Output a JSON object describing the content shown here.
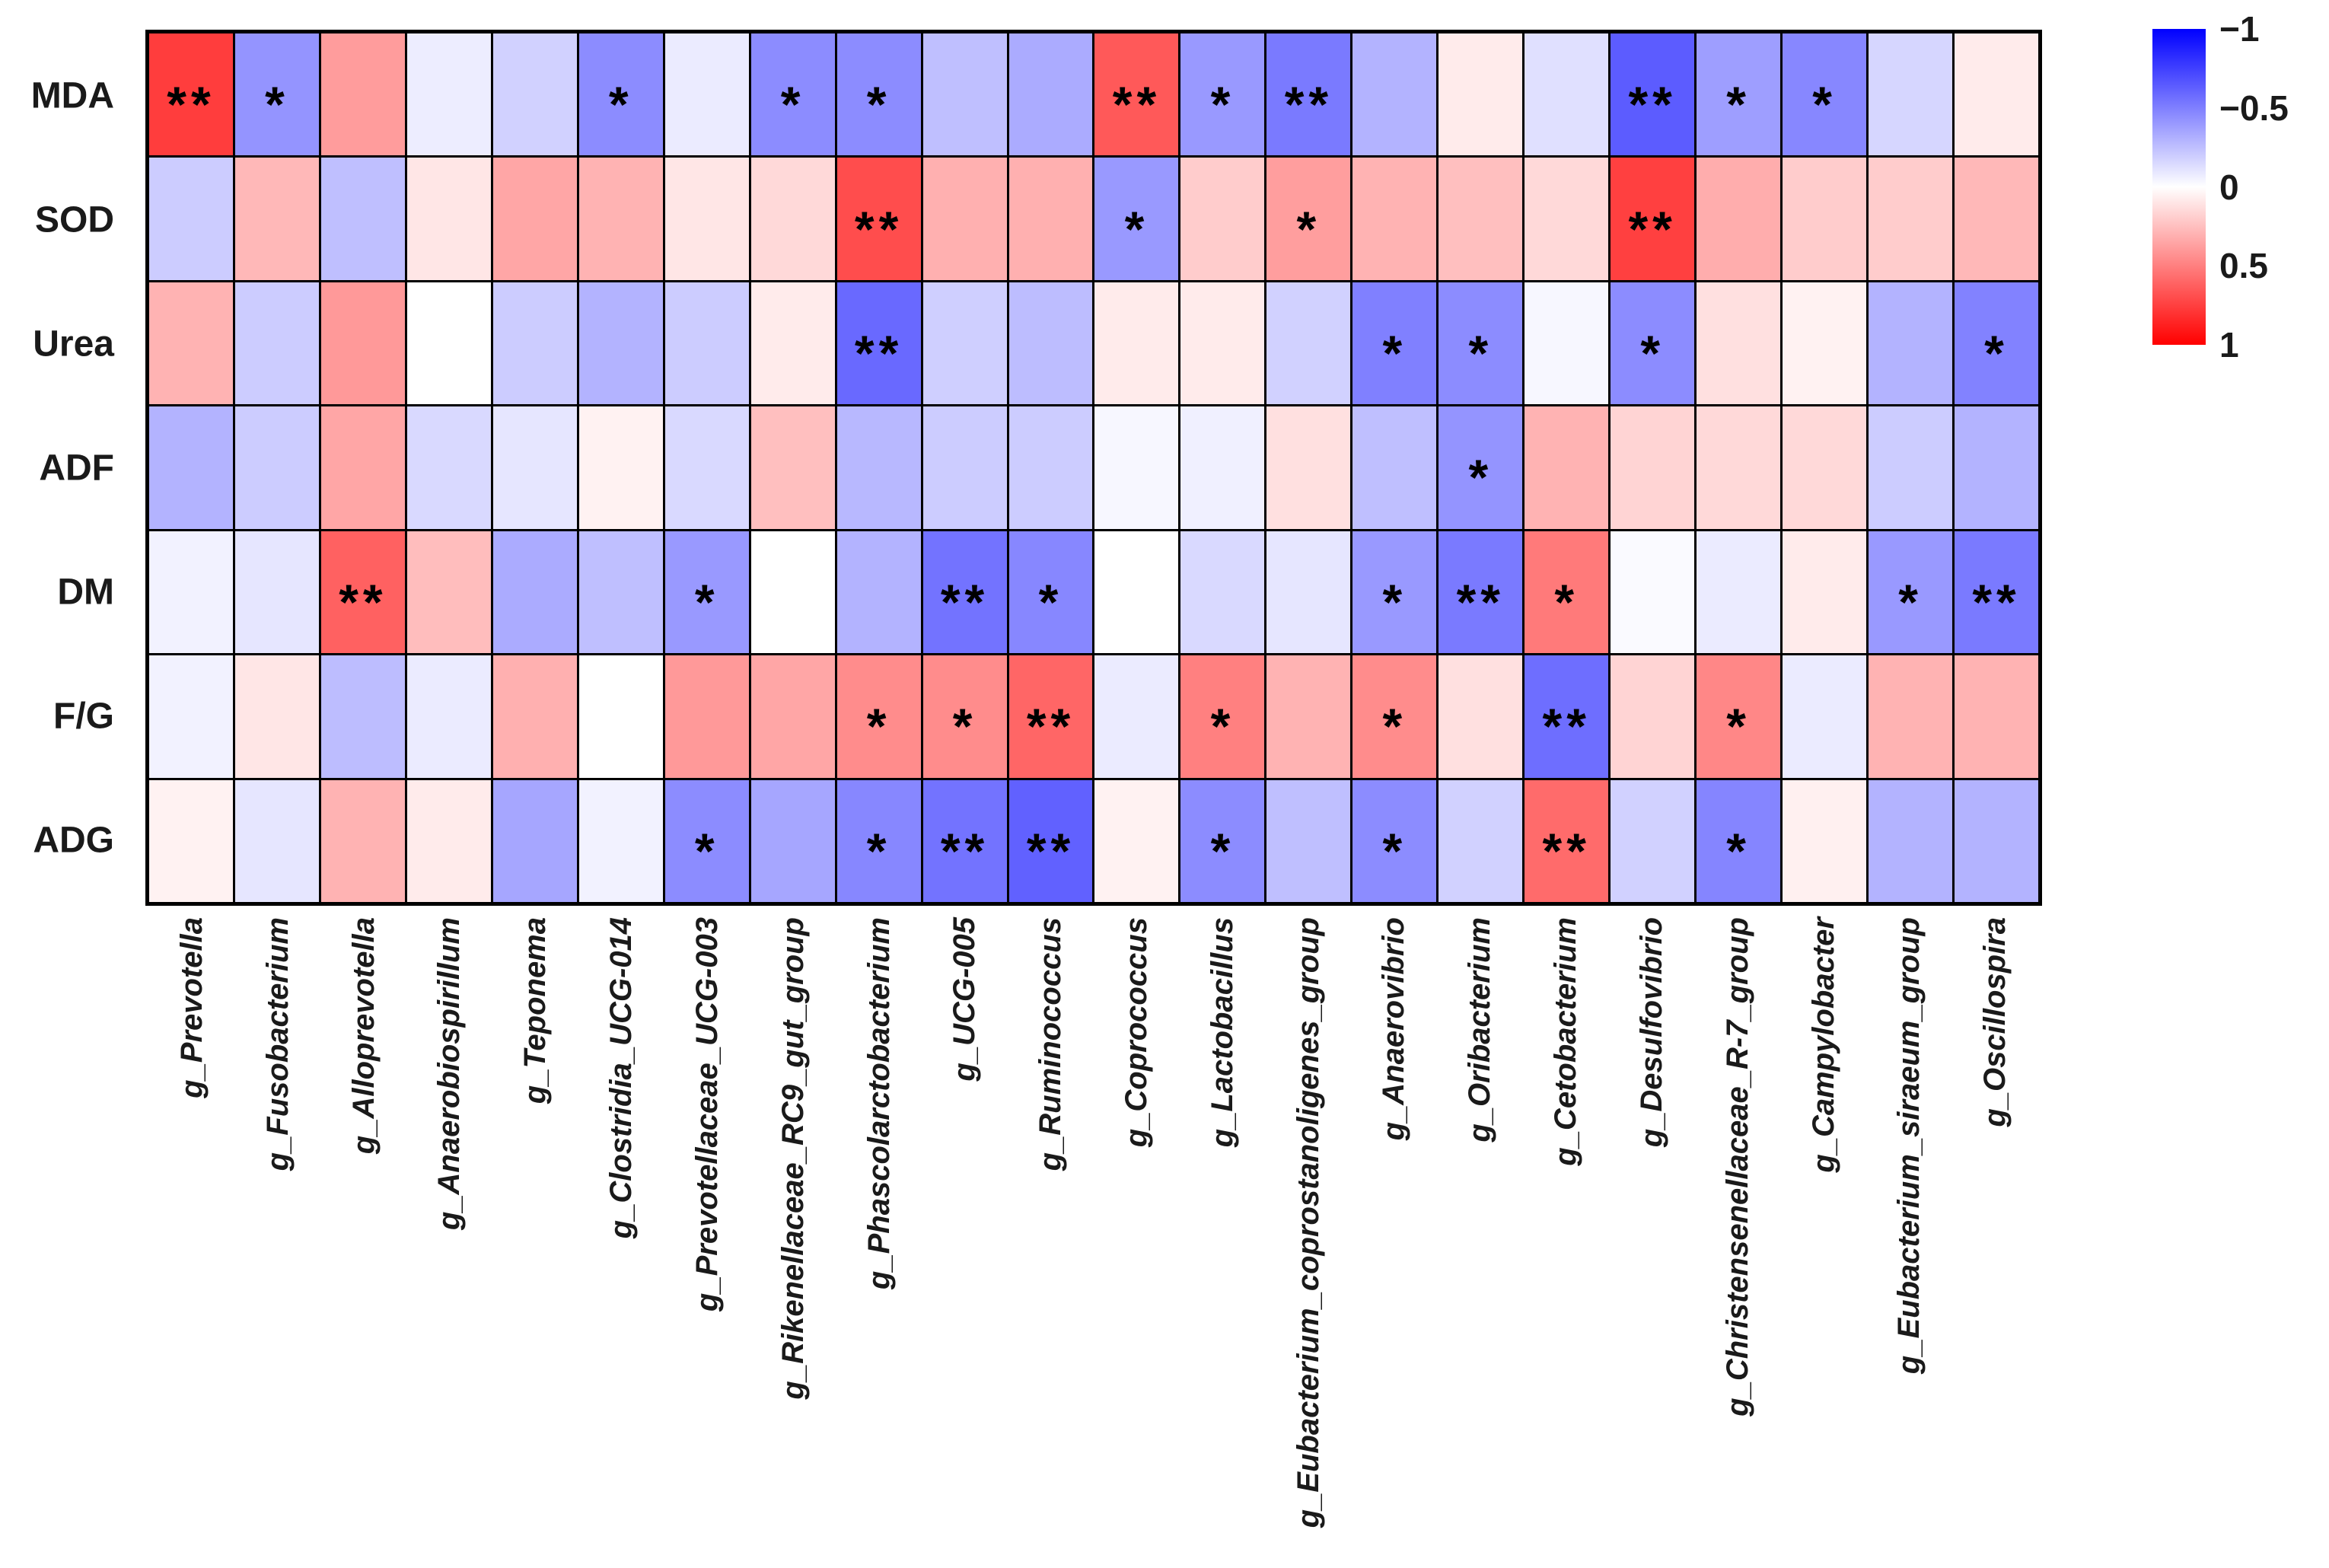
{
  "chart_data": {
    "type": "heatmap",
    "title": "",
    "rows": [
      "MDA",
      "SOD",
      "Urea",
      "ADF",
      "DM",
      "F/G",
      "ADG"
    ],
    "columns": [
      "g_Prevotella",
      "g_Fusobacterium",
      "g_Alloprevotella",
      "g_Anaerobiospirillum",
      "g_Teponema",
      "g_Clostridia_UCG-014",
      "g_Prevotellaceae_UCG-003",
      "g_Rikenellaceae_RC9_gut_group",
      "g_Phascolarctobacterium",
      "g_UCG-005",
      "g_Ruminococcus",
      "g_Coprococcus",
      "g_Lactobacillus",
      "g_Eubacterium_coprostanoligenes_group",
      "g_Anaerovibrio",
      "g_Oribacterium",
      "g_Cetobacterium",
      "g_Desulfovibrio",
      "g_Christensenellaceae_R-7_group",
      "g_Campylobacter",
      "g_Eubacterium_siraeum_group",
      "g_Oscillospira"
    ],
    "values": [
      [
        0.76,
        -0.42,
        0.39,
        -0.07,
        -0.18,
        -0.45,
        -0.08,
        -0.45,
        -0.45,
        -0.25,
        -0.33,
        0.65,
        -0.4,
        -0.52,
        -0.3,
        0.08,
        -0.12,
        -0.64,
        -0.38,
        -0.47,
        -0.16,
        0.08
      ],
      [
        -0.2,
        0.28,
        -0.25,
        0.1,
        0.35,
        0.3,
        0.1,
        0.15,
        0.7,
        0.31,
        0.31,
        -0.4,
        0.2,
        0.38,
        0.3,
        0.25,
        0.15,
        0.75,
        0.32,
        0.2,
        0.2,
        0.28
      ],
      [
        0.3,
        -0.2,
        0.4,
        0.0,
        -0.2,
        -0.3,
        -0.2,
        0.08,
        -0.59,
        -0.19,
        -0.26,
        0.08,
        0.08,
        -0.18,
        -0.5,
        -0.45,
        -0.03,
        -0.45,
        0.12,
        0.05,
        -0.3,
        -0.49
      ],
      [
        -0.3,
        -0.2,
        0.35,
        -0.15,
        -0.1,
        0.05,
        -0.15,
        0.25,
        -0.28,
        -0.2,
        -0.2,
        -0.03,
        -0.06,
        0.12,
        -0.25,
        -0.42,
        0.3,
        0.17,
        0.15,
        0.15,
        -0.2,
        -0.3
      ],
      [
        -0.05,
        -0.1,
        0.62,
        0.26,
        -0.33,
        -0.25,
        -0.4,
        0.0,
        -0.3,
        -0.55,
        -0.47,
        0.0,
        -0.15,
        -0.1,
        -0.4,
        -0.52,
        0.52,
        -0.02,
        -0.08,
        0.08,
        -0.4,
        -0.52
      ],
      [
        -0.05,
        0.1,
        -0.26,
        -0.08,
        0.31,
        0.0,
        0.4,
        0.35,
        0.45,
        0.45,
        0.6,
        -0.08,
        0.5,
        0.3,
        0.45,
        0.12,
        -0.57,
        0.17,
        0.47,
        -0.08,
        0.3,
        0.3
      ],
      [
        0.05,
        -0.1,
        0.3,
        0.08,
        -0.35,
        -0.05,
        -0.45,
        -0.35,
        -0.47,
        -0.55,
        -0.62,
        0.05,
        -0.45,
        -0.25,
        -0.45,
        -0.18,
        0.58,
        -0.18,
        -0.48,
        0.06,
        -0.3,
        -0.3
      ]
    ],
    "significance": [
      [
        "**",
        "*",
        "",
        "",
        "",
        "*",
        "",
        "*",
        "*",
        "",
        "",
        "**",
        "*",
        "**",
        "",
        "",
        "",
        "**",
        "*",
        "*",
        "",
        ""
      ],
      [
        "",
        "",
        "",
        "",
        "",
        "",
        "",
        "",
        "**",
        "",
        "",
        "*",
        "",
        "*",
        "",
        "",
        "",
        "**",
        "",
        "",
        "",
        ""
      ],
      [
        "",
        "",
        "",
        "",
        "",
        "",
        "",
        "",
        "**",
        "",
        "",
        "",
        "",
        "",
        "*",
        "*",
        "",
        "*",
        "",
        "",
        "",
        "*"
      ],
      [
        "",
        "",
        "",
        "",
        "",
        "",
        "",
        "",
        "",
        "",
        "",
        "",
        "",
        "",
        "",
        "*",
        "",
        "",
        "",
        "",
        "",
        ""
      ],
      [
        "",
        "",
        "**",
        "",
        "",
        "",
        "*",
        "",
        "",
        "**",
        "*",
        "",
        "",
        "",
        "*",
        "**",
        "*",
        "",
        "",
        "",
        "*",
        "**"
      ],
      [
        "",
        "",
        "",
        "",
        "",
        "",
        "",
        "",
        "*",
        "*",
        "**",
        "",
        "*",
        "",
        "*",
        "",
        "**",
        "",
        "*",
        "",
        "",
        ""
      ],
      [
        "",
        "",
        "",
        "",
        "",
        "",
        "*",
        "",
        "*",
        "**",
        "**",
        "",
        "*",
        "",
        "*",
        "",
        "**",
        "",
        "*",
        "",
        "",
        ""
      ]
    ],
    "colorscale": {
      "min": -1,
      "max": 1,
      "min_color": "#0000FF",
      "mid_color": "#FFFFFF",
      "max_color": "#FF0000"
    },
    "legend": {
      "position": "right",
      "ticks": [
        "−1",
        "−0.5",
        "0",
        "0.5",
        "1"
      ]
    },
    "gridlines": "black",
    "xlabel": "",
    "ylabel": ""
  }
}
